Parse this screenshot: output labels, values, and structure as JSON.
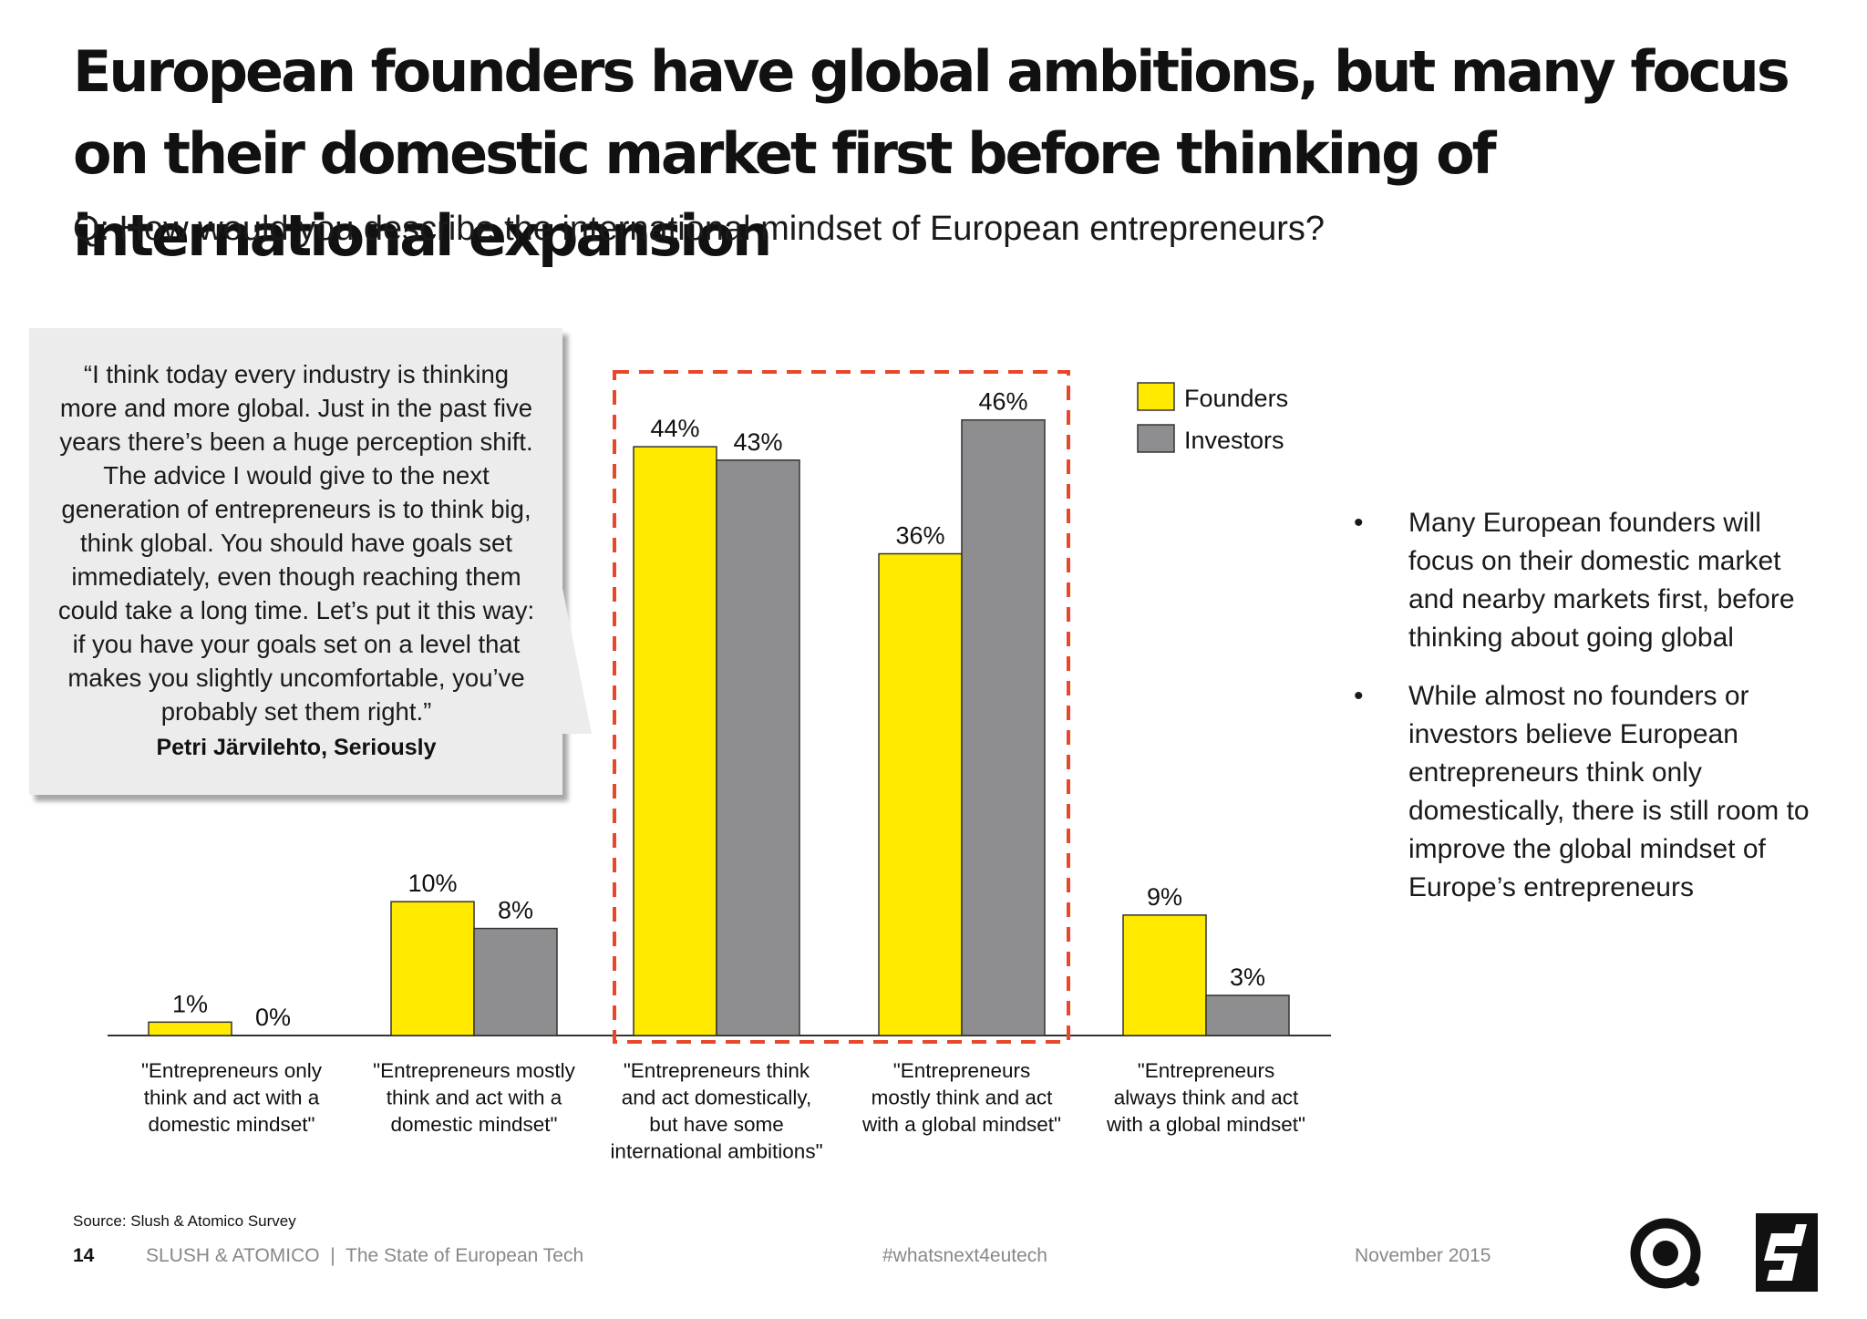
{
  "header": {
    "title": "European founders have global ambitions, but many focus on their domestic market first before thinking of international expansion",
    "subtitle": "Q: How would you describe the international mindset of European entrepreneurs?"
  },
  "quote": {
    "text": "“I think today every industry is thinking more and more global. Just in the past five years there’s been a huge perception shift. The advice I would give to the next generation of entrepreneurs is to think big, think global. You should have goals set immediately, even though reaching them could take a long time. Let’s put it this way: if you have your goals set on a level that makes you slightly uncomfortable, you’ve probably set them right.”",
    "author": "Petri Järvilehto, Seriously"
  },
  "chart_data": {
    "type": "bar",
    "categories": [
      "\"Entrepreneurs only think and act with a domestic mindset\"",
      "\"Entrepreneurs mostly think and act with a domestic mindset\"",
      "\"Entrepreneurs think and act domestically, but have some international ambitions\"",
      "\"Entrepreneurs mostly think and act with a global mindset\"",
      "\"Entrepreneurs always think and act with a global mindset\""
    ],
    "category_lines": [
      [
        "\"Entrepreneurs only",
        "think and act with a",
        "domestic mindset\""
      ],
      [
        "\"Entrepreneurs mostly",
        "think and act with a",
        "domestic mindset\""
      ],
      [
        "\"Entrepreneurs think",
        "and act domestically,",
        "but have some",
        "international ambitions\""
      ],
      [
        "\"Entrepreneurs",
        "mostly think and act",
        "with a global mindset\""
      ],
      [
        "\"Entrepreneurs",
        "always think and act",
        "with a global mindset\""
      ]
    ],
    "series": [
      {
        "name": "Founders",
        "values": [
          1,
          10,
          44,
          36,
          9
        ],
        "labels": [
          "1%",
          "10%",
          "44%",
          "36%",
          "9%"
        ],
        "color": "#ffea00"
      },
      {
        "name": "Investors",
        "values": [
          0,
          8,
          43,
          46,
          3
        ],
        "labels": [
          "0%",
          "8%",
          "43%",
          "46%",
          "3%"
        ],
        "color": "#8e8e90"
      }
    ],
    "highlight": {
      "categories": [
        2,
        3
      ],
      "color": "#e8472a"
    },
    "ylim": [
      0,
      50
    ],
    "legend": "top-right",
    "grid": false
  },
  "bullets": [
    "Many European founders will focus on their domestic market and nearby markets first, before thinking about going global",
    "While almost no founders or investors believe European entrepreneurs think only domestically, there is still room to improve the global mindset of Europe’s entrepreneurs"
  ],
  "bullet_symbol": "•",
  "footer": {
    "source": "Source: Slush & Atomico Survey",
    "page_number": "14",
    "brand": "SLUSH & ATOMICO  |  The State of European Tech",
    "hashtag": "#whatsnext4eutech",
    "date": "November 2015"
  },
  "logos": [
    "atomico-logo",
    "slush-logo"
  ]
}
